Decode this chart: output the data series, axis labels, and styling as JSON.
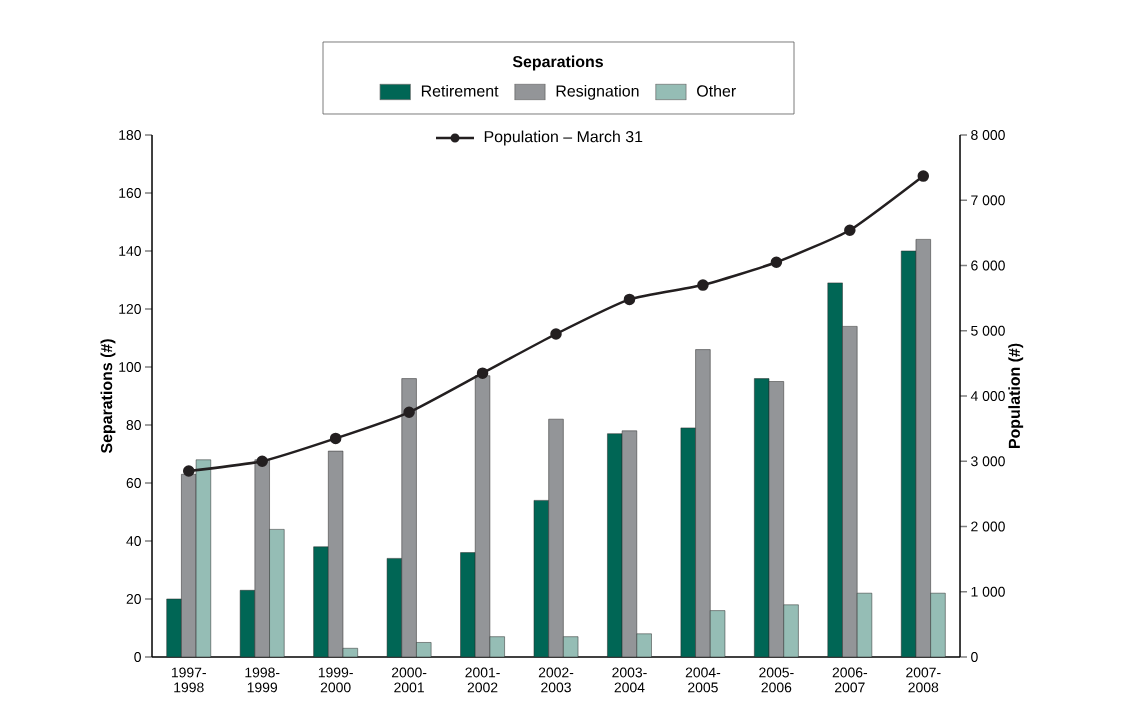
{
  "chart_data": {
    "type": "bar",
    "legend_title": "Separations",
    "ylabel": "Separations (#)",
    "y2label": "Population (#)",
    "categories": [
      "1997-1998",
      "1998-1999",
      "1999-2000",
      "2000-2001",
      "2001-2002",
      "2002-2003",
      "2003-2004",
      "2004-2005",
      "2005-2006",
      "2006-2007",
      "2007-2008"
    ],
    "series": [
      {
        "name": "Retirement",
        "color": "#006655",
        "values": [
          20,
          23,
          38,
          34,
          36,
          54,
          77,
          79,
          96,
          129,
          140
        ]
      },
      {
        "name": "Resignation",
        "color": "#939598",
        "values": [
          63,
          68,
          71,
          96,
          97,
          82,
          78,
          106,
          95,
          114,
          144
        ]
      },
      {
        "name": "Other",
        "color": "#95bdb5",
        "values": [
          68,
          44,
          3,
          5,
          7,
          7,
          8,
          16,
          18,
          22,
          22
        ]
      },
      {
        "name": "Population – March 31",
        "type": "line",
        "axis": "y2",
        "color": "#231f20",
        "marker": "circle",
        "line_style": "solid",
        "values": [
          2850,
          3000,
          3350,
          3750,
          4350,
          4950,
          5480,
          5700,
          6050,
          6540,
          7370
        ]
      }
    ],
    "ylim": [
      0,
      180
    ],
    "yticks": [
      0,
      20,
      40,
      60,
      80,
      100,
      120,
      140,
      160,
      180
    ],
    "y2lim": [
      0,
      8000
    ],
    "y2ticks": [
      0,
      {
        "value": 1000,
        "label": "1 000"
      },
      {
        "value": 2000,
        "label": "2 000"
      },
      {
        "value": 3000,
        "label": "3 000"
      },
      {
        "value": 4000,
        "label": "4 000"
      },
      {
        "value": 5000,
        "label": "5 000"
      },
      {
        "value": 6000,
        "label": "6 000"
      },
      {
        "value": 7000,
        "label": "7 000"
      },
      {
        "value": 8000,
        "label": "8 000"
      }
    ],
    "grid": false,
    "legend": "top"
  }
}
